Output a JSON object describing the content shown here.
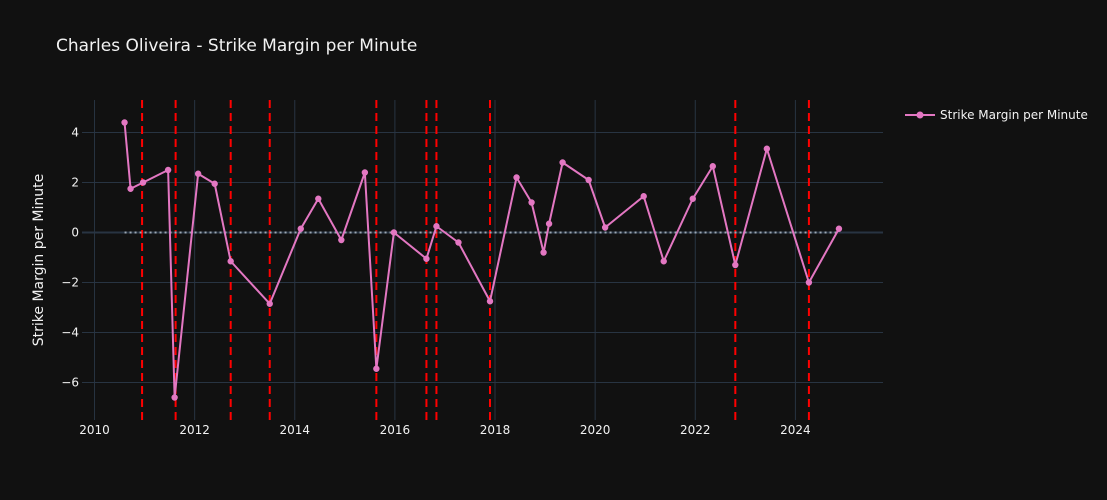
{
  "chart_data": {
    "type": "line",
    "title": "Charles Oliveira - Strike Margin per Minute",
    "xlabel": "",
    "ylabel": "Strike Margin per Minute",
    "xlim": [
      2009.75,
      2025.75
    ],
    "ylim": [
      -7.5,
      5.3
    ],
    "x_ticks": [
      2010,
      2012,
      2014,
      2016,
      2018,
      2020,
      2022,
      2024
    ],
    "x_tick_labels": [
      "2010",
      "2012",
      "2014",
      "2016",
      "2018",
      "2020",
      "2022",
      "2024"
    ],
    "y_ticks": [
      -6,
      -4,
      -2,
      0,
      2,
      4
    ],
    "y_tick_labels": [
      "−6",
      "−4",
      "−2",
      "0",
      "2",
      "4"
    ],
    "grid": true,
    "legend_position": "top-right",
    "colors": {
      "background": "#111111",
      "grid": "#283442",
      "series": "#e377c2",
      "zero_line": "#9aa6b4",
      "vline": "#ff0000"
    },
    "series": [
      {
        "name": "Strike Margin per Minute",
        "x": [
          2010.6,
          2010.72,
          2010.97,
          2011.47,
          2011.6,
          2012.07,
          2012.4,
          2012.72,
          2013.5,
          2014.12,
          2014.47,
          2014.93,
          2015.4,
          2015.63,
          2015.98,
          2016.63,
          2016.83,
          2017.27,
          2017.9,
          2018.43,
          2018.73,
          2018.97,
          2019.08,
          2019.35,
          2019.87,
          2020.2,
          2020.97,
          2021.37,
          2021.95,
          2022.35,
          2022.8,
          2023.43,
          2024.27,
          2024.87
        ],
        "y": [
          4.4,
          1.75,
          2.0,
          2.5,
          -6.6,
          2.35,
          1.95,
          -1.15,
          -2.85,
          0.15,
          1.35,
          -0.3,
          2.4,
          -5.45,
          0.0,
          -1.05,
          0.25,
          -0.4,
          -2.75,
          2.2,
          1.2,
          -0.8,
          0.35,
          2.8,
          2.1,
          0.2,
          1.45,
          -1.15,
          1.35,
          2.65,
          -1.3,
          3.35,
          -2.0,
          0.15
        ]
      }
    ],
    "zero_line": {
      "y": 0,
      "x_range": [
        2010.6,
        2024.87
      ],
      "style": "dotted"
    },
    "vertical_lines": [
      2010.95,
      2011.62,
      2012.72,
      2013.5,
      2015.63,
      2016.63,
      2016.83,
      2017.9,
      2022.8,
      2024.27
    ]
  }
}
